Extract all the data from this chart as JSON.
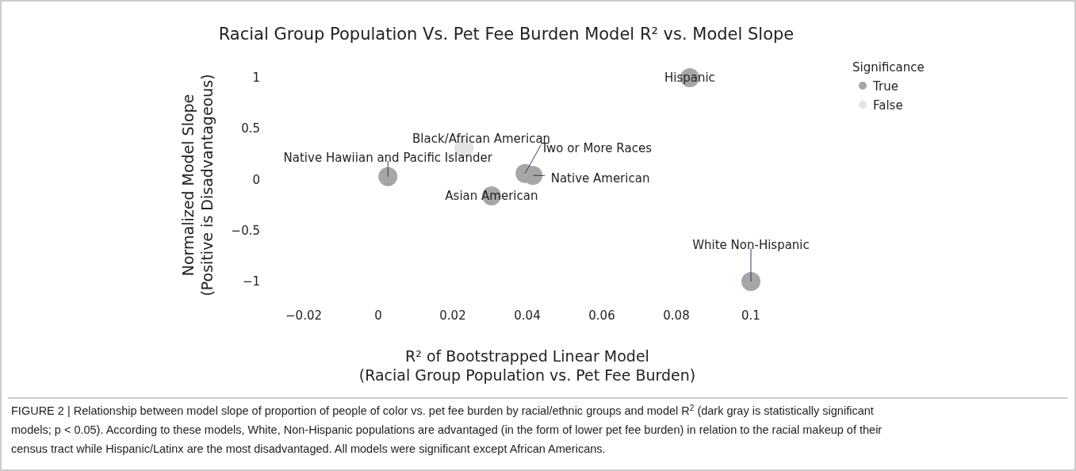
{
  "chart_data": {
    "type": "scatter",
    "title": "Racial Group Population Vs. Pet Fee Burden Model R² vs. Model Slope",
    "xlabel": "R² of Bootstrapped Linear Model\n(Racial Group Population vs. Pet Fee Burden)",
    "ylabel": "Normalized Model Slope\n(Positive is Disadvantageous)",
    "legend_title": "Significance",
    "legend": "top right",
    "marker": "circle",
    "xlim": [
      -0.02,
      0.1
    ],
    "xticks": [
      -0.02,
      0,
      0.02,
      0.04,
      0.06,
      0.08,
      0.1
    ],
    "ylim": [
      -1,
      1
    ],
    "yticks": [
      -1,
      -0.5,
      0,
      0.5,
      1
    ],
    "series": [
      {
        "name": "True",
        "color": "#a6a6a6",
        "x": [
          0.0836,
          0.0026,
          0.0304,
          0.0394,
          0.0415,
          0.1
        ],
        "values": [
          1.0,
          0.03,
          -0.16,
          0.06,
          0.04,
          -1.0
        ]
      },
      {
        "name": "False",
        "color": "#e3e3e3",
        "x": [
          0.023
        ],
        "values": [
          0.31
        ]
      }
    ],
    "annotations": [
      {
        "text": "Hispanic",
        "x": 0.0836,
        "y": 1.0
      },
      {
        "text": "Native Hawiian and Pacific Islander",
        "x": 0.0026,
        "y": 0.03
      },
      {
        "text": "Asian American",
        "x": 0.0304,
        "y": -0.16
      },
      {
        "text": "Two or More Races",
        "x": 0.0394,
        "y": 0.06
      },
      {
        "text": "Native American",
        "x": 0.0415,
        "y": 0.04
      },
      {
        "text": "White Non-Hispanic",
        "x": 0.1,
        "y": -1.0
      },
      {
        "text": "Black/African American",
        "x": 0.023,
        "y": 0.31
      },
      "FIGURE 2 | Relationship between model slope of proportion of people of color vs. pet fee burden by racial/ethnic groups and model R$^{2}$ (dark gray is statistically significant models; p < 0.05). According to these models, White, Non-Hispanic populations are advantaged (in the form of lower pet fee burden) in relation to the racial makeup of their census tract while Hispanic/Latinx are the most disadvantaged. All models were significant except African Americans."
    ]
  }
}
